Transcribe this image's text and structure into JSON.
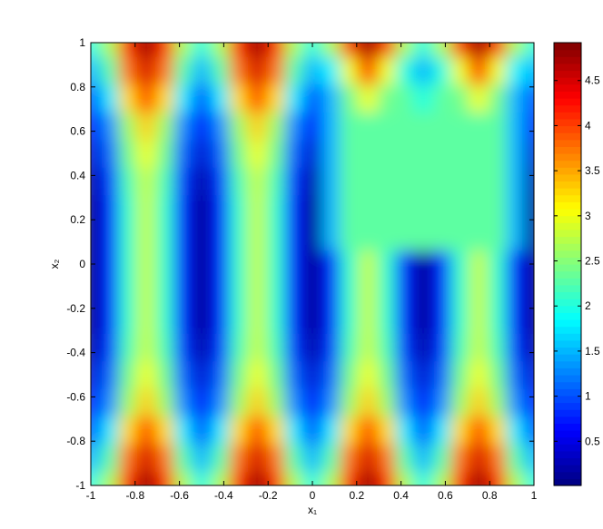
{
  "chart_data": {
    "type": "heatmap",
    "xlabel": "x₁",
    "ylabel": "x₂",
    "x": [
      -1,
      -0.9167,
      -0.8333,
      -0.75,
      -0.6667,
      -0.5833,
      -0.5,
      -0.4167,
      -0.3333,
      -0.25,
      -0.1667,
      -0.0833,
      0,
      0.0833,
      0.1667,
      0.25,
      0.3333,
      0.4167,
      0.5,
      0.5833,
      0.6667,
      0.75,
      0.8333,
      0.9167,
      1
    ],
    "y": [
      -1,
      -0.875,
      -0.75,
      -0.625,
      -0.5,
      -0.375,
      -0.25,
      -0.125,
      0,
      0.125,
      0.25,
      0.375,
      0.5,
      0.625,
      0.75,
      0.875,
      1
    ],
    "z": [
      [
        2.0,
        2.7,
        4.1,
        4.8,
        4.1,
        2.7,
        2.0,
        2.7,
        4.1,
        4.8,
        4.1,
        2.7,
        2.0,
        2.7,
        4.1,
        4.8,
        4.1,
        2.7,
        2.0,
        2.7,
        4.1,
        4.8,
        4.1,
        2.7,
        2.0
      ],
      [
        1.5,
        2.25,
        3.75,
        4.5,
        3.75,
        2.25,
        1.5,
        2.25,
        3.75,
        4.5,
        3.75,
        2.25,
        1.5,
        2.25,
        3.75,
        4.5,
        3.75,
        2.25,
        1.5,
        2.25,
        3.75,
        4.5,
        3.75,
        2.25,
        1.5
      ],
      [
        1.0,
        1.75,
        3.25,
        4.0,
        3.25,
        1.75,
        1.0,
        1.75,
        3.25,
        4.0,
        3.25,
        1.75,
        1.0,
        1.75,
        3.25,
        4.0,
        3.25,
        1.75,
        1.0,
        1.75,
        3.25,
        4.0,
        3.25,
        1.75,
        1.0
      ],
      [
        0.6,
        1.3,
        2.6,
        3.3,
        2.6,
        1.3,
        0.6,
        1.3,
        2.6,
        3.3,
        2.6,
        1.3,
        0.6,
        1.3,
        2.6,
        3.3,
        2.6,
        1.3,
        0.6,
        1.3,
        2.6,
        3.3,
        2.6,
        1.3,
        0.6
      ],
      [
        0.4,
        1.1,
        2.4,
        3.0,
        2.4,
        1.1,
        0.4,
        1.1,
        2.4,
        3.0,
        2.4,
        1.1,
        0.4,
        1.1,
        2.4,
        3.0,
        2.4,
        1.1,
        0.4,
        1.1,
        2.4,
        3.0,
        2.4,
        1.1,
        0.4
      ],
      [
        0.2,
        0.9,
        2.2,
        2.8,
        2.2,
        0.9,
        0.2,
        0.9,
        2.2,
        2.8,
        2.2,
        0.9,
        0.2,
        0.9,
        2.2,
        2.8,
        2.2,
        0.9,
        0.2,
        0.9,
        2.2,
        2.8,
        2.2,
        0.9,
        0.2
      ],
      [
        0.1,
        0.8,
        2.1,
        2.8,
        2.1,
        0.8,
        0.1,
        0.8,
        2.1,
        2.8,
        2.1,
        0.8,
        0.1,
        0.8,
        2.1,
        2.8,
        2.1,
        0.8,
        0.1,
        0.8,
        2.1,
        2.8,
        2.1,
        0.8,
        0.1
      ],
      [
        0.1,
        0.8,
        2.1,
        2.8,
        2.1,
        0.8,
        0.1,
        0.8,
        2.1,
        2.8,
        2.1,
        0.8,
        0.1,
        0.8,
        2.1,
        2.8,
        2.1,
        0.8,
        0.1,
        0.8,
        2.1,
        2.8,
        2.1,
        0.8,
        0.1
      ],
      [
        0.1,
        0.8,
        2.1,
        2.8,
        2.1,
        0.8,
        0.1,
        0.8,
        2.1,
        2.8,
        2.1,
        0.8,
        0.1,
        0.8,
        2.1,
        2.8,
        2.1,
        0.8,
        0.1,
        0.8,
        2.1,
        2.8,
        2.1,
        0.8,
        0.1
      ],
      [
        0.1,
        0.8,
        2.1,
        2.8,
        2.1,
        0.8,
        0.1,
        0.8,
        2.1,
        2.8,
        2.1,
        0.8,
        0.1,
        1.5,
        2.3,
        2.3,
        2.3,
        2.3,
        2.3,
        2.3,
        2.3,
        2.3,
        2.3,
        1.5,
        0.1
      ],
      [
        0.1,
        0.8,
        2.1,
        2.8,
        2.1,
        0.8,
        0.1,
        0.8,
        2.1,
        2.8,
        2.1,
        0.8,
        0.1,
        1.5,
        2.3,
        2.3,
        2.3,
        2.3,
        2.3,
        2.3,
        2.3,
        2.3,
        2.3,
        1.5,
        0.1
      ],
      [
        0.2,
        0.9,
        2.2,
        2.8,
        2.2,
        0.9,
        0.2,
        0.9,
        2.2,
        2.8,
        2.2,
        0.9,
        0.2,
        1.5,
        2.3,
        2.3,
        2.3,
        2.3,
        2.3,
        2.3,
        2.3,
        2.3,
        2.3,
        1.5,
        0.2
      ],
      [
        0.4,
        1.1,
        2.4,
        3.0,
        2.4,
        1.1,
        0.4,
        1.1,
        2.4,
        3.0,
        2.4,
        1.1,
        0.4,
        1.5,
        2.3,
        2.3,
        2.3,
        2.3,
        2.3,
        2.3,
        2.3,
        2.3,
        2.3,
        1.5,
        0.4
      ],
      [
        0.6,
        1.3,
        2.6,
        3.3,
        2.6,
        1.3,
        0.6,
        1.3,
        2.6,
        3.3,
        2.6,
        1.3,
        0.6,
        1.5,
        2.3,
        2.3,
        2.3,
        2.3,
        2.3,
        2.3,
        2.3,
        2.3,
        2.3,
        1.5,
        0.6
      ],
      [
        1.0,
        1.75,
        3.25,
        4.0,
        3.25,
        1.75,
        1.0,
        1.75,
        3.25,
        4.0,
        3.25,
        1.75,
        1.0,
        1.5,
        2.4,
        3.0,
        2.4,
        2.3,
        2.0,
        2.3,
        2.4,
        3.0,
        2.4,
        1.5,
        1.0
      ],
      [
        1.5,
        2.25,
        3.75,
        4.5,
        3.75,
        2.25,
        1.5,
        2.25,
        3.75,
        4.5,
        3.75,
        2.25,
        1.5,
        1.8,
        3.0,
        4.2,
        3.0,
        2.0,
        1.5,
        2.0,
        3.0,
        4.2,
        3.0,
        1.8,
        1.5
      ],
      [
        2.0,
        2.7,
        4.1,
        4.8,
        4.1,
        2.7,
        2.0,
        2.7,
        4.1,
        4.8,
        4.1,
        2.7,
        2.0,
        2.7,
        4.1,
        4.8,
        4.1,
        2.7,
        2.0,
        2.7,
        4.1,
        4.8,
        4.1,
        2.7,
        2.0
      ]
    ],
    "xlim": [
      -1,
      1
    ],
    "ylim": [
      -1,
      1
    ],
    "xticks": [
      -1,
      -0.8,
      -0.6,
      -0.4,
      -0.2,
      0,
      0.2,
      0.4,
      0.6,
      0.8,
      1
    ],
    "yticks": [
      -1,
      -0.8,
      -0.6,
      -0.4,
      -0.2,
      0,
      0.2,
      0.4,
      0.6,
      0.8,
      1
    ],
    "clim": [
      0.01,
      4.92
    ],
    "cticks": [
      0.5,
      1,
      1.5,
      2,
      2.5,
      3,
      3.5,
      4,
      4.5
    ],
    "colormap": "jet"
  }
}
